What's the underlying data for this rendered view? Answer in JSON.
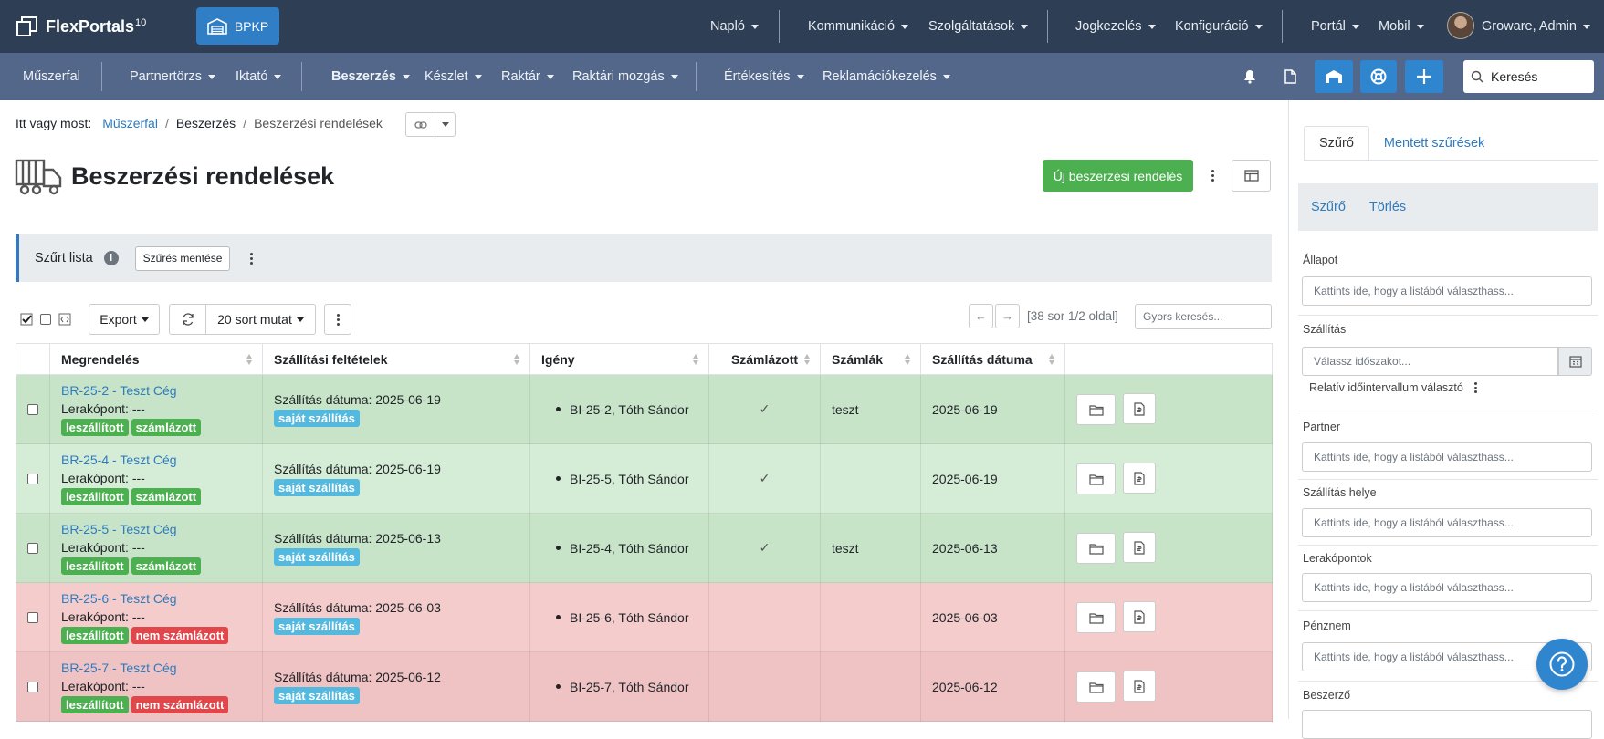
{
  "topbar": {
    "logo_text": "FlexPortals",
    "logo_version": "10",
    "workspace_button": "BPKP",
    "menu": [
      "Napló",
      "Kommunikáció",
      "Szolgáltatások",
      "Jogkezelés",
      "Konfiguráció",
      "Portál",
      "Mobil"
    ],
    "user_name": "Groware, Admin"
  },
  "subnav": {
    "items": [
      "Műszerfal",
      "Partnertörzs",
      "Iktató",
      "Beszerzés",
      "Készlet",
      "Raktár",
      "Raktári mozgás",
      "Értékesítés",
      "Reklamációkezelés"
    ],
    "search_placeholder": "Keresés"
  },
  "breadcrumb": {
    "prefix": "Itt vagy most:",
    "items": [
      "Műszerfal",
      "Beszerzés",
      "Beszerzési rendelések"
    ]
  },
  "page": {
    "title": "Beszerzési rendelések",
    "new_button": "Új beszerzési rendelés"
  },
  "filterbar": {
    "label": "Szűrt lista",
    "save_button": "Szűrés mentése"
  },
  "toolbar": {
    "export": "Export",
    "rows_per_page": "20 sort mutat",
    "page_info": "[38 sor 1/2 oldal]",
    "quick_search_placeholder": "Gyors keresés..."
  },
  "table": {
    "headers": [
      "Megrendelés",
      "Szállítási feltételek",
      "Igény",
      "Számlázott",
      "Számlák",
      "Szállítás dátuma"
    ],
    "rows": [
      {
        "order": "BR-25-2 - Teszt Cég",
        "dropoff": "Lerakópont: ---",
        "status1": "leszállított",
        "status2": "számlázott",
        "status2_color": "#4caf50",
        "terms": "Szállítás dátuma: 2025-06-19",
        "terms_badge": "saját szállítás",
        "demand": "BI-25-2, Tóth Sándor",
        "invoiced": "✓",
        "invoices": "teszt",
        "date": "2025-06-19",
        "row_color": "#c7e4c8"
      },
      {
        "order": "BR-25-4 - Teszt Cég",
        "dropoff": "Lerakópont: ---",
        "status1": "leszállított",
        "status2": "számlázott",
        "status2_color": "#4caf50",
        "terms": "Szállítás dátuma: 2025-06-19",
        "terms_badge": "saját szállítás",
        "demand": "BI-25-5, Tóth Sándor",
        "invoiced": "✓",
        "invoices": "",
        "date": "2025-06-19",
        "row_color": "#d5ecd6"
      },
      {
        "order": "BR-25-5 - Teszt Cég",
        "dropoff": "Lerakópont: ---",
        "status1": "leszállított",
        "status2": "számlázott",
        "status2_color": "#4caf50",
        "terms": "Szállítás dátuma: 2025-06-13",
        "terms_badge": "saját szállítás",
        "demand": "BI-25-4, Tóth Sándor",
        "invoiced": "✓",
        "invoices": "teszt",
        "date": "2025-06-13",
        "row_color": "#c7e4c8"
      },
      {
        "order": "BR-25-6 - Teszt Cég",
        "dropoff": "Lerakópont: ---",
        "status1": "leszállított",
        "status2": "nem számlázott",
        "status2_color": "#e0464a",
        "terms": "Szállítás dátuma: 2025-06-03",
        "terms_badge": "saját szállítás",
        "demand": "BI-25-6, Tóth Sándor",
        "invoiced": "",
        "invoices": "",
        "date": "2025-06-03",
        "row_color": "#f4cccc"
      },
      {
        "order": "BR-25-7 - Teszt Cég",
        "dropoff": "Lerakópont: ---",
        "status1": "leszállított",
        "status2": "nem számlázott",
        "status2_color": "#e0464a",
        "terms": "Szállítás dátuma: 2025-06-12",
        "terms_badge": "saját szállítás",
        "demand": "BI-25-7, Tóth Sándor",
        "invoiced": "",
        "invoices": "",
        "date": "2025-06-12",
        "row_color": "#efc2c3"
      }
    ]
  },
  "sidebar": {
    "tabs": [
      "Szűrő",
      "Mentett szűrések"
    ],
    "actions": [
      "Szűrő",
      "Törlés"
    ],
    "fields": [
      {
        "label": "Állapot",
        "placeholder": "Kattints ide, hogy a listából választhass..."
      },
      {
        "label": "Szállítás",
        "placeholder": "Válassz időszakot..."
      },
      {
        "label": "Partner",
        "placeholder": "Kattints ide, hogy a listából választhass..."
      },
      {
        "label": "Szállítás helye",
        "placeholder": "Kattints ide, hogy a listából választhass..."
      },
      {
        "label": "Lerakópontok",
        "placeholder": "Kattints ide, hogy a listából választhass..."
      },
      {
        "label": "Pénznem",
        "placeholder": "Kattints ide, hogy a listából választhass..."
      },
      {
        "label": "Beszerző",
        "placeholder": ""
      }
    ],
    "relative_interval": "Relatív időintervallum választó"
  },
  "colors": {
    "topbar": "#2e3f55",
    "subbar": "#53678a",
    "accent": "#2f86cf",
    "success": "#4caf50",
    "danger": "#e0464a",
    "info": "#54b9de"
  }
}
